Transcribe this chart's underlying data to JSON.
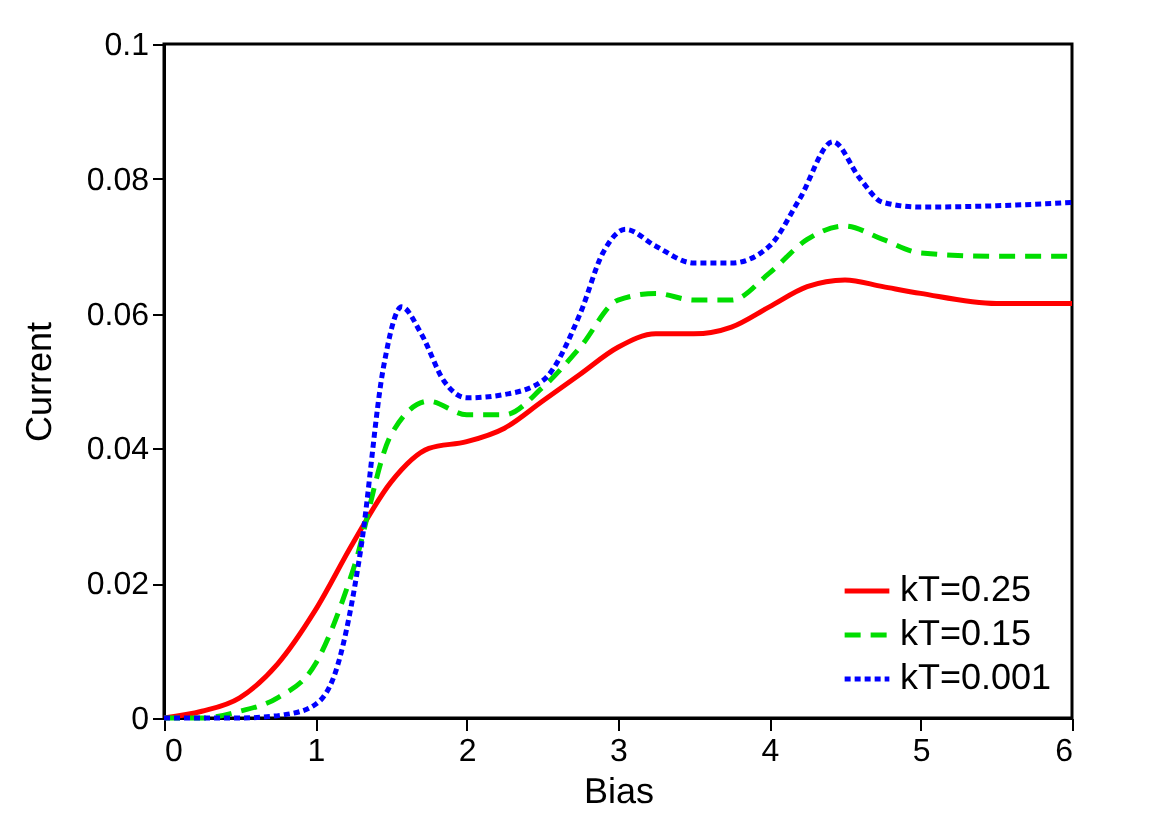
{
  "chart_data": {
    "type": "line",
    "xlabel": "Bias",
    "ylabel": "Current",
    "xlim": [
      0,
      6
    ],
    "xticks": [
      0,
      1,
      2,
      3,
      4,
      5,
      6
    ],
    "ylim": [
      0,
      0.1
    ],
    "yticks": [
      0,
      0.02,
      0.04,
      0.06,
      0.08,
      0.1
    ],
    "legend": "bottom right",
    "grid": false,
    "marker": "none",
    "series": [
      {
        "name": "kT=0.25",
        "color": "#ff0000",
        "line_style": "solid",
        "x": [
          0,
          0.25,
          0.5,
          0.75,
          1,
          1.25,
          1.5,
          1.75,
          2,
          2.25,
          2.5,
          2.75,
          3,
          3.25,
          3.5,
          3.75,
          4,
          4.25,
          4.5,
          4.75,
          5,
          5.5,
          6
        ],
        "values": [
          0,
          0.001,
          0.003,
          0.008,
          0.016,
          0.026,
          0.035,
          0.04,
          0.041,
          0.043,
          0.047,
          0.051,
          0.055,
          0.057,
          0.057,
          0.058,
          0.061,
          0.064,
          0.065,
          0.064,
          0.063,
          0.0615,
          0.0615
        ]
      },
      {
        "name": "kT=0.15",
        "color": "#00dd00",
        "line_style": "dashed",
        "x": [
          0,
          0.25,
          0.5,
          0.75,
          1,
          1.25,
          1.5,
          1.75,
          2,
          2.25,
          2.5,
          2.75,
          3,
          3.25,
          3.5,
          3.75,
          4,
          4.25,
          4.5,
          4.75,
          5,
          5.5,
          6
        ],
        "values": [
          0,
          0,
          0.001,
          0.003,
          0.008,
          0.022,
          0.042,
          0.047,
          0.045,
          0.045,
          0.049,
          0.055,
          0.062,
          0.063,
          0.062,
          0.062,
          0.066,
          0.071,
          0.073,
          0.071,
          0.069,
          0.0685,
          0.0685
        ]
      },
      {
        "name": "kT=0.001",
        "color": "#0000ff",
        "line_style": "dotted",
        "x": [
          0,
          0.5,
          0.8,
          1,
          1.15,
          1.3,
          1.45,
          1.57,
          1.7,
          1.85,
          2,
          2.25,
          2.5,
          2.75,
          2.9,
          3.05,
          3.25,
          3.5,
          3.75,
          4,
          4.2,
          4.42,
          4.6,
          4.75,
          5,
          5.5,
          6
        ],
        "values": [
          0,
          0,
          0.0005,
          0.002,
          0.008,
          0.025,
          0.052,
          0.061,
          0.057,
          0.05,
          0.0475,
          0.048,
          0.05,
          0.06,
          0.069,
          0.0725,
          0.07,
          0.0675,
          0.0675,
          0.07,
          0.077,
          0.0855,
          0.08,
          0.0765,
          0.0758,
          0.076,
          0.0765
        ]
      }
    ]
  }
}
